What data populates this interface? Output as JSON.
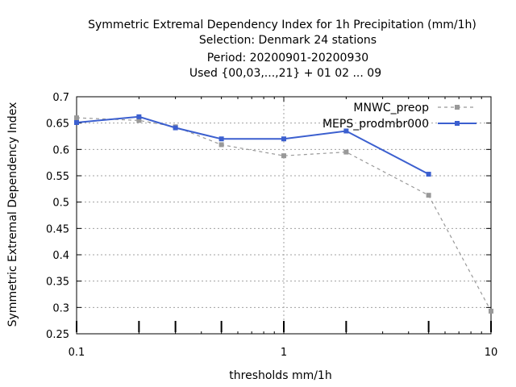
{
  "chart_data": {
    "type": "line",
    "title_lines": [
      "Symmetric Extremal Dependency Index  for 1h Precipitation (mm/1h)",
      "Selection: Denmark     24 stations",
      "Period: 20200901-20200930",
      "Used {00,03,...,21} + 01 02 ... 09"
    ],
    "xlabel": "thresholds mm/1h",
    "ylabel": "Symmetric Extremal Dependency Index",
    "xscale": "log",
    "xlim": [
      0.1,
      10
    ],
    "ylim": [
      0.25,
      0.7
    ],
    "x_ticks": [
      0.1,
      1,
      10
    ],
    "x_tick_labels": [
      "0.1",
      "1",
      "10"
    ],
    "y_ticks": [
      0.25,
      0.3,
      0.35,
      0.4,
      0.45,
      0.5,
      0.55,
      0.6,
      0.65,
      0.7
    ],
    "y_tick_labels": [
      "0.25",
      "0.3",
      "0.35",
      "0.4",
      "0.45",
      "0.5",
      "0.55",
      "0.6",
      "0.65",
      "0.7"
    ],
    "grid": true,
    "legend_position": "top-right",
    "series": [
      {
        "name": "MNWC_preop",
        "color": "#999999",
        "style": "dashed",
        "x": [
          0.1,
          0.2,
          0.3,
          0.5,
          1,
          2,
          5,
          10
        ],
        "y": [
          0.66,
          0.655,
          0.643,
          0.609,
          0.588,
          0.595,
          0.513,
          0.293
        ]
      },
      {
        "name": "MEPS_prodmbr000",
        "color": "#3b5fcf",
        "style": "solid",
        "x": [
          0.1,
          0.2,
          0.3,
          0.5,
          1,
          2,
          5
        ],
        "y": [
          0.651,
          0.662,
          0.641,
          0.62,
          0.62,
          0.635,
          0.553
        ]
      }
    ],
    "sample_size_marks_x": [
      0.1,
      0.2,
      0.3,
      0.5,
      1,
      2,
      5,
      10
    ]
  }
}
